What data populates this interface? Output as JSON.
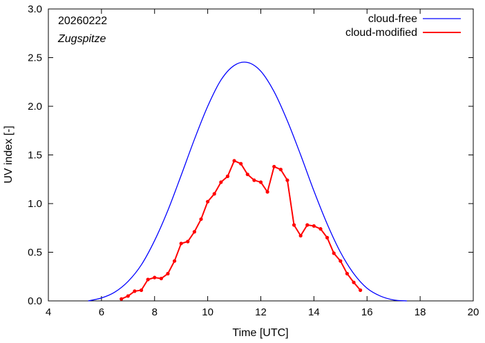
{
  "chart_data": {
    "type": "line",
    "title": "",
    "annotations": {
      "date": "20260222",
      "station": "Zugspitze"
    },
    "xlabel": "Time  [UTC]",
    "ylabel": "UV index  [-]",
    "xlim": [
      4,
      20
    ],
    "ylim": [
      0,
      3.0
    ],
    "xticks": [
      4,
      6,
      8,
      10,
      12,
      14,
      16,
      18,
      20
    ],
    "yticks": [
      "0.0",
      "0.5",
      "1.0",
      "1.5",
      "2.0",
      "2.5",
      "3.0"
    ],
    "legend_position": "top-right",
    "series": [
      {
        "name": "cloud-free",
        "color": "#0000ff",
        "marker": "none",
        "x": [
          5.5,
          6.0,
          6.5,
          7.0,
          7.5,
          8.0,
          8.5,
          9.0,
          9.5,
          10.0,
          10.5,
          11.0,
          11.5,
          12.0,
          12.5,
          13.0,
          13.5,
          14.0,
          14.5,
          15.0,
          15.5,
          16.0,
          16.5,
          17.0,
          17.5
        ],
        "y": [
          0.0,
          0.03,
          0.09,
          0.2,
          0.37,
          0.62,
          0.93,
          1.29,
          1.66,
          2.0,
          2.27,
          2.42,
          2.45,
          2.36,
          2.15,
          1.85,
          1.5,
          1.13,
          0.79,
          0.5,
          0.28,
          0.13,
          0.05,
          0.01,
          0.0
        ]
      },
      {
        "name": "cloud-modified",
        "color": "#ff0000",
        "marker": "circle",
        "x": [
          6.75,
          7.0,
          7.25,
          7.5,
          7.75,
          8.0,
          8.25,
          8.5,
          8.75,
          9.0,
          9.25,
          9.5,
          9.75,
          10.0,
          10.25,
          10.5,
          10.75,
          11.0,
          11.25,
          11.5,
          11.75,
          12.0,
          12.25,
          12.5,
          12.75,
          13.0,
          13.25,
          13.5,
          13.75,
          14.0,
          14.25,
          14.5,
          14.75,
          15.0,
          15.25,
          15.5,
          15.75
        ],
        "y": [
          0.02,
          0.05,
          0.1,
          0.11,
          0.22,
          0.24,
          0.23,
          0.28,
          0.41,
          0.59,
          0.61,
          0.71,
          0.84,
          1.02,
          1.1,
          1.22,
          1.28,
          1.44,
          1.41,
          1.3,
          1.24,
          1.22,
          1.12,
          1.38,
          1.35,
          1.24,
          0.78,
          0.67,
          0.78,
          0.77,
          0.74,
          0.65,
          0.49,
          0.41,
          0.28,
          0.19,
          0.11
        ]
      }
    ]
  }
}
